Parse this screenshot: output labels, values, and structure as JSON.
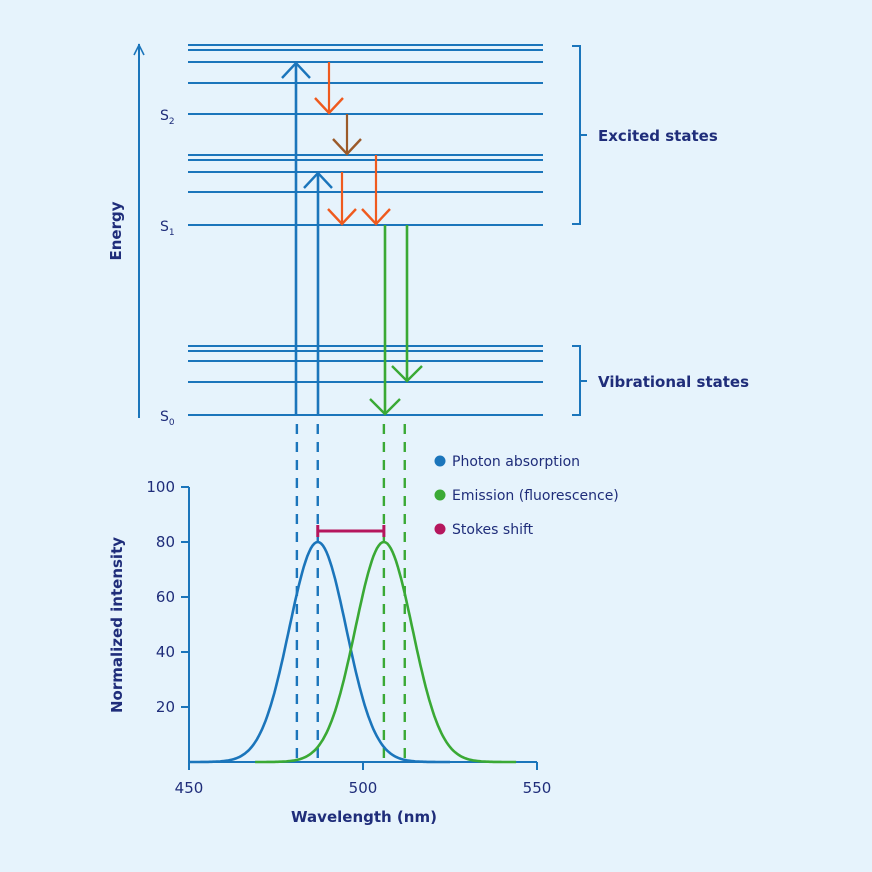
{
  "jablonski": {
    "energy_label": "Energy",
    "state_labels": [
      {
        "id": "S2",
        "main": "S",
        "sub": "2"
      },
      {
        "id": "S1",
        "main": "S",
        "sub": "1"
      },
      {
        "id": "S0",
        "main": "S",
        "sub": "0"
      }
    ],
    "bracket_labels": {
      "excited": "Excited states",
      "vibrational": "Vibrational states"
    },
    "level_groups": {
      "S2": 5,
      "S1": 5,
      "S0": 5
    },
    "transitions": [
      {
        "type": "absorption",
        "from": "S0",
        "to": "S2 top vibrational level",
        "color": "#1b75bb"
      },
      {
        "type": "absorption",
        "from": "S0",
        "to": "S1 upper vibrational level",
        "color": "#1b75bb"
      },
      {
        "type": "vibrational-relaxation",
        "within": "S2",
        "color": "#ef5a1e"
      },
      {
        "type": "internal-conversion",
        "from": "S2",
        "to": "S1",
        "color": "#9b5a2a"
      },
      {
        "type": "vibrational-relaxation",
        "within": "S1",
        "color": "#ef5a1e"
      },
      {
        "type": "vibrational-relaxation",
        "within": "S1",
        "color": "#ef5a1e"
      },
      {
        "type": "emission",
        "from": "S1",
        "to": "S0",
        "color": "#3aa935"
      },
      {
        "type": "emission",
        "from": "S1",
        "to": "S0 vibrational level",
        "color": "#3aa935"
      }
    ]
  },
  "legend": [
    {
      "label": "Photon absorption",
      "color": "#1b75bb"
    },
    {
      "label": "Emission (fluorescence)",
      "color": "#3aa935"
    },
    {
      "label": "Stokes shift",
      "color": "#b5165d"
    }
  ],
  "colors": {
    "background": "#e6f3fc",
    "text": "#1f2d7a",
    "level_line": "#1b75bb",
    "absorption": "#1b75bb",
    "emission": "#3aa935",
    "relaxation": "#ef5a1e",
    "internal_conversion": "#9b5a2a",
    "stokes": "#b5165d"
  },
  "chart_data": {
    "type": "line",
    "title": "",
    "xlabel": "Wavelength (nm)",
    "ylabel": "Normalized intensity",
    "xlim": [
      450,
      550
    ],
    "ylim": [
      0,
      100
    ],
    "xticks": [
      450,
      500,
      550
    ],
    "yticks": [
      20,
      40,
      60,
      80,
      100
    ],
    "grid": false,
    "legend_position": "top-right",
    "series": [
      {
        "name": "Photon absorption",
        "color": "#1b75bb",
        "peak_wavelength": 487,
        "peak_value": 80,
        "sigma": 8.2,
        "x_range": [
          450,
          525
        ]
      },
      {
        "name": "Emission (fluorescence)",
        "color": "#3aa935",
        "peak_wavelength": 506,
        "peak_value": 80,
        "sigma": 8.2,
        "x_range": [
          469,
          544
        ]
      }
    ],
    "reference_lines": [
      {
        "wavelength": 481,
        "color": "#1b75bb",
        "style": "dashed"
      },
      {
        "wavelength": 487,
        "color": "#1b75bb",
        "style": "dashed"
      },
      {
        "wavelength": 506,
        "color": "#3aa935",
        "style": "dashed"
      },
      {
        "wavelength": 512,
        "color": "#3aa935",
        "style": "dashed"
      }
    ],
    "stokes_shift": {
      "from": 487,
      "to": 506,
      "value": 84,
      "color": "#b5165d"
    }
  }
}
